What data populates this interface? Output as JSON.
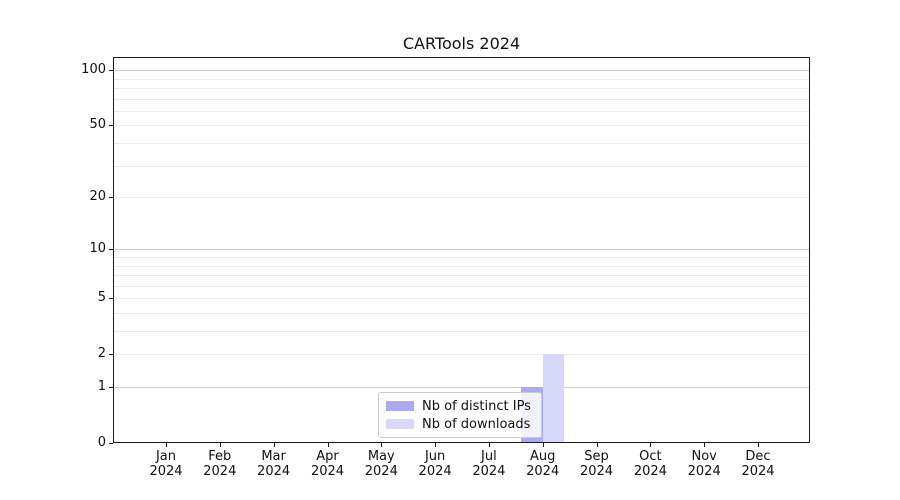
{
  "title": "CARTools 2024",
  "chart_data": {
    "type": "bar",
    "title": "CARTools 2024",
    "x_categories": [
      "Jan",
      "Feb",
      "Mar",
      "Apr",
      "May",
      "Jun",
      "Jul",
      "Aug",
      "Sep",
      "Oct",
      "Nov",
      "Dec"
    ],
    "x_year": "2024",
    "series": [
      {
        "name": "Nb of distinct IPs",
        "color": "#a9a9f4",
        "values": [
          0,
          0,
          0,
          0,
          0,
          0,
          0,
          1,
          0,
          0,
          0,
          0
        ]
      },
      {
        "name": "Nb of downloads",
        "color": "#d7d7f9",
        "values": [
          0,
          0,
          0,
          0,
          0,
          0,
          0,
          2,
          0,
          0,
          0,
          0
        ]
      }
    ],
    "xlabel": "",
    "ylabel": "",
    "y_axis": {
      "scale": "log1p",
      "tick_labels": [
        0,
        1,
        2,
        5,
        10,
        20,
        50,
        100
      ],
      "major_gridlines": [
        1,
        10,
        100
      ],
      "minor_gridlines": [
        2,
        3,
        4,
        5,
        6,
        7,
        8,
        9,
        20,
        30,
        40,
        50,
        60,
        70,
        80,
        90
      ],
      "ylim": [
        0,
        118
      ]
    },
    "legend": {
      "position": "lower center",
      "entries": [
        "Nb of distinct IPs",
        "Nb of downloads"
      ]
    },
    "grid": true,
    "colors": {
      "distinct_ips_bar": "#a9a9f4",
      "downloads_bar": "#d7d7f9",
      "major_grid": "#cfcfcf",
      "minor_grid": "#eaeaea",
      "frame": "#1a1a1a",
      "background": "#ffffff"
    }
  }
}
